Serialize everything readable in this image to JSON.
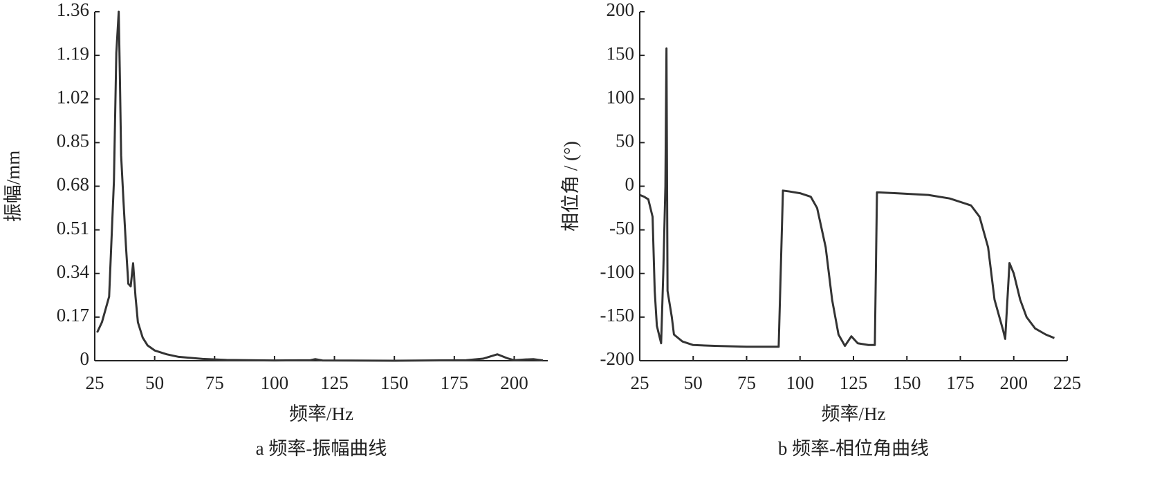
{
  "chart_data": [
    {
      "type": "line",
      "caption": "a 频率-振幅曲线",
      "x_label": "频率/Hz",
      "y_label": "振幅/mm",
      "xlim": [
        25,
        214
      ],
      "xticks": [
        25,
        50,
        75,
        100,
        125,
        150,
        175,
        200
      ],
      "ylim": [
        0,
        1.36
      ],
      "yticks": [
        0,
        0.17,
        0.34,
        0.51,
        0.68,
        0.85,
        1.02,
        1.19,
        1.36
      ],
      "series": [
        {
          "color": "#333333",
          "x": [
            26,
            28,
            31,
            33,
            34,
            35,
            35.5,
            36,
            37,
            38,
            39,
            40,
            41,
            42,
            43,
            45,
            47,
            50,
            55,
            60,
            70,
            80,
            100,
            115,
            117,
            120,
            150,
            180,
            187,
            193,
            197,
            200,
            205,
            208,
            212
          ],
          "values": [
            0.11,
            0.15,
            0.25,
            0.7,
            1.2,
            1.36,
            1.1,
            0.8,
            0.62,
            0.45,
            0.3,
            0.29,
            0.38,
            0.25,
            0.15,
            0.09,
            0.06,
            0.04,
            0.025,
            0.015,
            0.007,
            0.003,
            0.001,
            0.002,
            0.006,
            0.001,
            0,
            0.002,
            0.008,
            0.025,
            0.01,
            0.002,
            0.005,
            0.006,
            0.001
          ]
        }
      ]
    },
    {
      "type": "line",
      "caption": "b 频率-相位角曲线",
      "x_label": "频率/Hz",
      "y_label": "相位角 / (°)",
      "xlim": [
        25,
        225
      ],
      "xticks": [
        25,
        50,
        75,
        100,
        125,
        150,
        175,
        200,
        225
      ],
      "ylim": [
        -200,
        200
      ],
      "yticks": [
        -200,
        -150,
        -100,
        -50,
        0,
        50,
        100,
        150,
        200
      ],
      "series": [
        {
          "color": "#333333",
          "x": [
            25,
            27,
            29,
            31,
            32,
            33,
            35,
            36,
            37,
            37.5,
            38,
            40,
            41,
            45,
            50,
            60,
            75,
            90,
            92,
            95,
            100,
            105,
            108,
            112,
            115,
            118,
            121,
            124,
            127,
            132,
            135,
            136,
            145,
            160,
            170,
            180,
            184,
            188,
            191,
            195,
            196,
            198,
            200,
            203,
            206,
            210,
            215,
            219
          ],
          "values": [
            -10,
            -12,
            -15,
            -35,
            -120,
            -160,
            -180,
            -100,
            0,
            158,
            -120,
            -150,
            -170,
            -178,
            -182,
            -183,
            -184,
            -184,
            -5,
            -6,
            -8,
            -12,
            -25,
            -70,
            -130,
            -170,
            -183,
            -172,
            -180,
            -182,
            -182,
            -7,
            -8,
            -10,
            -14,
            -22,
            -35,
            -70,
            -130,
            -165,
            -175,
            -88,
            -100,
            -130,
            -150,
            -163,
            -170,
            -174
          ]
        }
      ]
    }
  ]
}
